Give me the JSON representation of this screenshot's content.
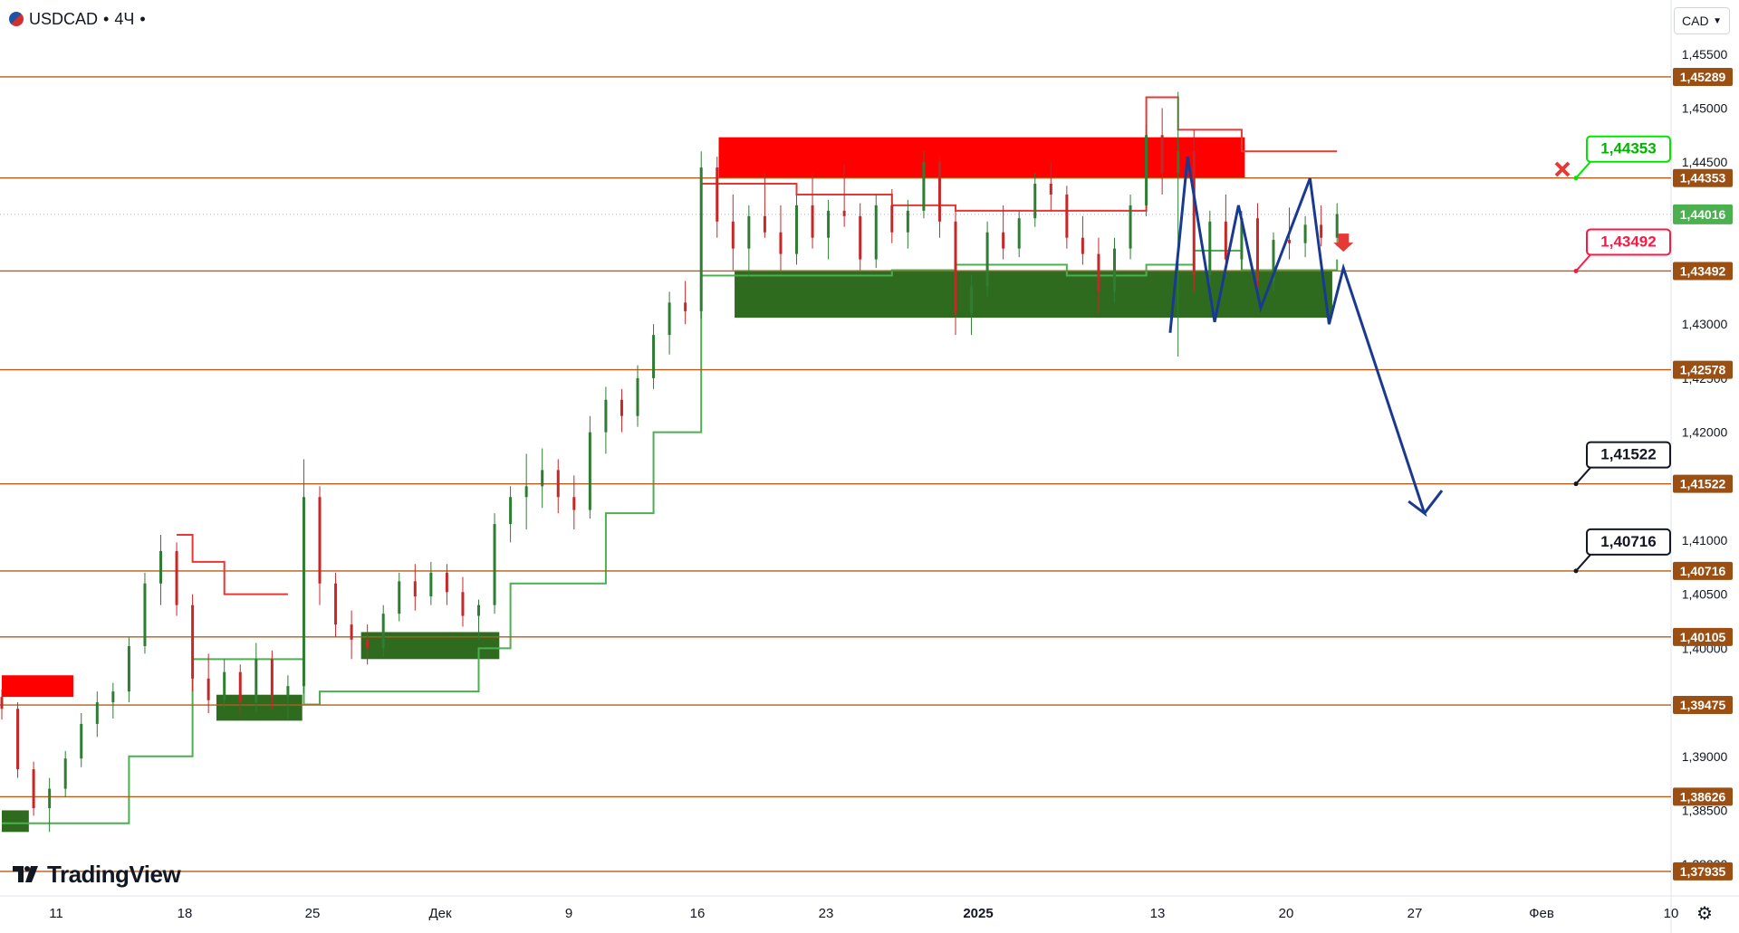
{
  "header": {
    "symbol": "USDCAD",
    "sep1": "•",
    "timeframe": "4Ч",
    "sep2": "•"
  },
  "currency_selector": {
    "value": "CAD"
  },
  "brand": {
    "name": "TradingView"
  },
  "colors": {
    "bull_candle": "#2e7d32",
    "bear_candle": "#c62828",
    "level_line": "#b65c1a",
    "resistance_zone": "#ff0000",
    "support_zone": "#2e6b1f",
    "stop_line": "#e53935",
    "trail_line": "#4caf50",
    "forecast_path": "#1a3a8f",
    "label_green": "#00e600",
    "label_red": "#ff1744"
  },
  "chart_data": {
    "type": "candlestick",
    "symbol": "USDCAD",
    "timeframe": "4Ч",
    "ylim": [
      1.3775,
      1.459
    ],
    "y_ticks": [
      "1,45500",
      "1,45000",
      "1,44500",
      "1,44000",
      "1,43500",
      "1,43000",
      "1,42500",
      "1,42000",
      "1,41500",
      "1,41000",
      "1,40500",
      "1,40000",
      "1,39500",
      "1,39000",
      "1,38500",
      "1,38000"
    ],
    "x_labels": [
      "11",
      "18",
      "25",
      "Дек",
      "9",
      "16",
      "23",
      "2025",
      "13",
      "20",
      "27",
      "Фев",
      "10"
    ],
    "levels": [
      {
        "label": "1,45289",
        "value": 1.45289
      },
      {
        "label": "1,44353",
        "value": 1.44353
      },
      {
        "label": "1,43492",
        "value": 1.43492
      },
      {
        "label": "1,42578",
        "value": 1.42578
      },
      {
        "label": "1,41522",
        "value": 1.41522
      },
      {
        "label": "1,40716",
        "value": 1.40716
      },
      {
        "label": "1,40105",
        "value": 1.40105
      },
      {
        "label": "1,39475",
        "value": 1.39475
      },
      {
        "label": "1,38626",
        "value": 1.38626
      },
      {
        "label": "1,37935",
        "value": 1.37935
      }
    ],
    "current_price": {
      "label": "1,44016",
      "value": 1.44016
    },
    "callouts": [
      {
        "label": "1,44353",
        "value": 1.44353,
        "style": "green"
      },
      {
        "label": "1,43492",
        "value": 1.43492,
        "style": "red"
      },
      {
        "label": "1,41522",
        "value": 1.41522,
        "style": "black"
      },
      {
        "label": "1,40716",
        "value": 1.40716,
        "style": "black"
      }
    ],
    "zones": [
      {
        "kind": "resistance",
        "x0": 0.0,
        "x1": 4.5,
        "y0": 1.3955,
        "y1": 1.3975
      },
      {
        "kind": "support",
        "x0": 0.0,
        "x1": 1.7,
        "y0": 1.383,
        "y1": 1.385
      },
      {
        "kind": "support",
        "x0": 13.5,
        "x1": 18.9,
        "y0": 1.3933,
        "y1": 1.3957
      },
      {
        "kind": "support",
        "x0": 22.6,
        "x1": 31.3,
        "y0": 1.399,
        "y1": 1.4015
      },
      {
        "kind": "resistance",
        "x0": 45.1,
        "x1": 78.2,
        "y0": 1.4435,
        "y1": 1.4473
      },
      {
        "kind": "support",
        "x0": 46.1,
        "x1": 83.7,
        "y0": 1.4306,
        "y1": 1.435
      }
    ],
    "candles": [
      {
        "x": 0,
        "o": 1.3955,
        "h": 1.3962,
        "l": 1.3934,
        "c": 1.3944
      },
      {
        "x": 1,
        "o": 1.3944,
        "h": 1.395,
        "l": 1.388,
        "c": 1.3888
      },
      {
        "x": 2,
        "o": 1.3888,
        "h": 1.3895,
        "l": 1.3845,
        "c": 1.3852
      },
      {
        "x": 3,
        "o": 1.3852,
        "h": 1.388,
        "l": 1.383,
        "c": 1.387
      },
      {
        "x": 4,
        "o": 1.387,
        "h": 1.3905,
        "l": 1.3862,
        "c": 1.3898
      },
      {
        "x": 5,
        "o": 1.3898,
        "h": 1.394,
        "l": 1.389,
        "c": 1.393
      },
      {
        "x": 6,
        "o": 1.393,
        "h": 1.396,
        "l": 1.3918,
        "c": 1.395
      },
      {
        "x": 7,
        "o": 1.395,
        "h": 1.3968,
        "l": 1.3935,
        "c": 1.396
      },
      {
        "x": 8,
        "o": 1.396,
        "h": 1.401,
        "l": 1.395,
        "c": 1.4002
      },
      {
        "x": 9,
        "o": 1.4002,
        "h": 1.407,
        "l": 1.3995,
        "c": 1.406
      },
      {
        "x": 10,
        "o": 1.406,
        "h": 1.4105,
        "l": 1.404,
        "c": 1.409
      },
      {
        "x": 11,
        "o": 1.409,
        "h": 1.4098,
        "l": 1.403,
        "c": 1.404
      },
      {
        "x": 12,
        "o": 1.404,
        "h": 1.405,
        "l": 1.396,
        "c": 1.3972
      },
      {
        "x": 13,
        "o": 1.3972,
        "h": 1.3995,
        "l": 1.394,
        "c": 1.3952
      },
      {
        "x": 14,
        "o": 1.3952,
        "h": 1.399,
        "l": 1.3945,
        "c": 1.3978
      },
      {
        "x": 15,
        "o": 1.3978,
        "h": 1.3985,
        "l": 1.3938,
        "c": 1.395
      },
      {
        "x": 16,
        "o": 1.395,
        "h": 1.4005,
        "l": 1.3942,
        "c": 1.399
      },
      {
        "x": 17,
        "o": 1.399,
        "h": 1.3998,
        "l": 1.3944,
        "c": 1.3955
      },
      {
        "x": 18,
        "o": 1.3955,
        "h": 1.3975,
        "l": 1.3935,
        "c": 1.3965
      },
      {
        "x": 19,
        "o": 1.3965,
        "h": 1.4175,
        "l": 1.3958,
        "c": 1.414
      },
      {
        "x": 20,
        "o": 1.414,
        "h": 1.415,
        "l": 1.404,
        "c": 1.406
      },
      {
        "x": 21,
        "o": 1.406,
        "h": 1.407,
        "l": 1.401,
        "c": 1.4022
      },
      {
        "x": 22,
        "o": 1.4022,
        "h": 1.4035,
        "l": 1.399,
        "c": 1.4008
      },
      {
        "x": 23,
        "o": 1.4008,
        "h": 1.4022,
        "l": 1.3985,
        "c": 1.4
      },
      {
        "x": 24,
        "o": 1.4,
        "h": 1.404,
        "l": 1.3992,
        "c": 1.4032
      },
      {
        "x": 25,
        "o": 1.4032,
        "h": 1.407,
        "l": 1.4025,
        "c": 1.4062
      },
      {
        "x": 26,
        "o": 1.4062,
        "h": 1.4078,
        "l": 1.4035,
        "c": 1.4048
      },
      {
        "x": 27,
        "o": 1.4048,
        "h": 1.408,
        "l": 1.404,
        "c": 1.407
      },
      {
        "x": 28,
        "o": 1.407,
        "h": 1.4078,
        "l": 1.404,
        "c": 1.4052
      },
      {
        "x": 29,
        "o": 1.4052,
        "h": 1.4066,
        "l": 1.402,
        "c": 1.403
      },
      {
        "x": 30,
        "o": 1.403,
        "h": 1.4045,
        "l": 1.4008,
        "c": 1.404
      },
      {
        "x": 31,
        "o": 1.404,
        "h": 1.4125,
        "l": 1.4032,
        "c": 1.4115
      },
      {
        "x": 32,
        "o": 1.4115,
        "h": 1.415,
        "l": 1.4098,
        "c": 1.414
      },
      {
        "x": 33,
        "o": 1.414,
        "h": 1.418,
        "l": 1.411,
        "c": 1.415
      },
      {
        "x": 34,
        "o": 1.415,
        "h": 1.4185,
        "l": 1.413,
        "c": 1.4165
      },
      {
        "x": 35,
        "o": 1.4165,
        "h": 1.4175,
        "l": 1.4125,
        "c": 1.414
      },
      {
        "x": 36,
        "o": 1.414,
        "h": 1.416,
        "l": 1.411,
        "c": 1.4128
      },
      {
        "x": 37,
        "o": 1.4128,
        "h": 1.4215,
        "l": 1.412,
        "c": 1.42
      },
      {
        "x": 38,
        "o": 1.42,
        "h": 1.4242,
        "l": 1.418,
        "c": 1.423
      },
      {
        "x": 39,
        "o": 1.423,
        "h": 1.424,
        "l": 1.42,
        "c": 1.4215
      },
      {
        "x": 40,
        "o": 1.4215,
        "h": 1.4262,
        "l": 1.4205,
        "c": 1.425
      },
      {
        "x": 41,
        "o": 1.425,
        "h": 1.43,
        "l": 1.424,
        "c": 1.429
      },
      {
        "x": 42,
        "o": 1.429,
        "h": 1.433,
        "l": 1.4272,
        "c": 1.432
      },
      {
        "x": 43,
        "o": 1.432,
        "h": 1.434,
        "l": 1.43,
        "c": 1.4312
      },
      {
        "x": 44,
        "o": 1.4312,
        "h": 1.446,
        "l": 1.4305,
        "c": 1.4445
      },
      {
        "x": 45,
        "o": 1.4445,
        "h": 1.4455,
        "l": 1.438,
        "c": 1.4395
      },
      {
        "x": 46,
        "o": 1.4395,
        "h": 1.442,
        "l": 1.435,
        "c": 1.437
      },
      {
        "x": 47,
        "o": 1.437,
        "h": 1.441,
        "l": 1.4345,
        "c": 1.44
      },
      {
        "x": 48,
        "o": 1.44,
        "h": 1.444,
        "l": 1.438,
        "c": 1.4385
      },
      {
        "x": 49,
        "o": 1.4385,
        "h": 1.441,
        "l": 1.435,
        "c": 1.4365
      },
      {
        "x": 50,
        "o": 1.4365,
        "h": 1.442,
        "l": 1.4355,
        "c": 1.441
      },
      {
        "x": 51,
        "o": 1.441,
        "h": 1.444,
        "l": 1.437,
        "c": 1.438
      },
      {
        "x": 52,
        "o": 1.438,
        "h": 1.4415,
        "l": 1.436,
        "c": 1.4405
      },
      {
        "x": 53,
        "o": 1.4405,
        "h": 1.4448,
        "l": 1.439,
        "c": 1.44
      },
      {
        "x": 54,
        "o": 1.44,
        "h": 1.4412,
        "l": 1.435,
        "c": 1.436
      },
      {
        "x": 55,
        "o": 1.436,
        "h": 1.442,
        "l": 1.4352,
        "c": 1.441
      },
      {
        "x": 56,
        "o": 1.441,
        "h": 1.4425,
        "l": 1.4375,
        "c": 1.4385
      },
      {
        "x": 57,
        "o": 1.4385,
        "h": 1.4415,
        "l": 1.437,
        "c": 1.4405
      },
      {
        "x": 58,
        "o": 1.4405,
        "h": 1.446,
        "l": 1.4398,
        "c": 1.445
      },
      {
        "x": 59,
        "o": 1.445,
        "h": 1.4455,
        "l": 1.438,
        "c": 1.4395
      },
      {
        "x": 60,
        "o": 1.4395,
        "h": 1.4405,
        "l": 1.429,
        "c": 1.431
      },
      {
        "x": 61,
        "o": 1.431,
        "h": 1.4345,
        "l": 1.429,
        "c": 1.4335
      },
      {
        "x": 62,
        "o": 1.4335,
        "h": 1.4395,
        "l": 1.4325,
        "c": 1.4385
      },
      {
        "x": 63,
        "o": 1.4385,
        "h": 1.441,
        "l": 1.436,
        "c": 1.437
      },
      {
        "x": 64,
        "o": 1.437,
        "h": 1.4405,
        "l": 1.4362,
        "c": 1.4398
      },
      {
        "x": 65,
        "o": 1.4398,
        "h": 1.444,
        "l": 1.439,
        "c": 1.443
      },
      {
        "x": 66,
        "o": 1.443,
        "h": 1.445,
        "l": 1.4405,
        "c": 1.442
      },
      {
        "x": 67,
        "o": 1.442,
        "h": 1.4428,
        "l": 1.437,
        "c": 1.438
      },
      {
        "x": 68,
        "o": 1.438,
        "h": 1.44,
        "l": 1.4355,
        "c": 1.4365
      },
      {
        "x": 69,
        "o": 1.4365,
        "h": 1.438,
        "l": 1.431,
        "c": 1.433
      },
      {
        "x": 70,
        "o": 1.433,
        "h": 1.438,
        "l": 1.432,
        "c": 1.437
      },
      {
        "x": 71,
        "o": 1.437,
        "h": 1.442,
        "l": 1.436,
        "c": 1.441
      },
      {
        "x": 72,
        "o": 1.441,
        "h": 1.4485,
        "l": 1.44,
        "c": 1.4475
      },
      {
        "x": 73,
        "o": 1.4475,
        "h": 1.45,
        "l": 1.442,
        "c": 1.444
      },
      {
        "x": 74,
        "o": 1.444,
        "h": 1.4515,
        "l": 1.427,
        "c": 1.446
      },
      {
        "x": 75,
        "o": 1.446,
        "h": 1.448,
        "l": 1.433,
        "c": 1.4345
      },
      {
        "x": 76,
        "o": 1.4345,
        "h": 1.4405,
        "l": 1.433,
        "c": 1.4395
      },
      {
        "x": 77,
        "o": 1.4395,
        "h": 1.442,
        "l": 1.4345,
        "c": 1.436
      },
      {
        "x": 78,
        "o": 1.436,
        "h": 1.4405,
        "l": 1.435,
        "c": 1.4398
      },
      {
        "x": 79,
        "o": 1.4398,
        "h": 1.4412,
        "l": 1.433,
        "c": 1.434
      },
      {
        "x": 80,
        "o": 1.434,
        "h": 1.4385,
        "l": 1.433,
        "c": 1.4378
      },
      {
        "x": 81,
        "o": 1.4378,
        "h": 1.4408,
        "l": 1.436,
        "c": 1.4375
      },
      {
        "x": 82,
        "o": 1.4375,
        "h": 1.44,
        "l": 1.4362,
        "c": 1.4392
      },
      {
        "x": 83,
        "o": 1.4392,
        "h": 1.441,
        "l": 1.4372,
        "c": 1.438
      },
      {
        "x": 84,
        "o": 1.438,
        "h": 1.4412,
        "l": 1.4372,
        "c": 1.4402
      }
    ],
    "trail_support": [
      [
        0,
        1.3838
      ],
      [
        8,
        1.39
      ],
      [
        12,
        1.399
      ],
      [
        19,
        1.3948
      ],
      [
        20,
        1.396
      ],
      [
        30,
        1.4
      ],
      [
        32,
        1.406
      ],
      [
        38,
        1.4125
      ],
      [
        41,
        1.42
      ],
      [
        44,
        1.4345
      ],
      [
        56,
        1.435
      ],
      [
        60,
        1.4355
      ],
      [
        67,
        1.4345
      ],
      [
        72,
        1.4355
      ],
      [
        75,
        1.4368
      ],
      [
        78,
        1.435
      ],
      [
        84,
        1.436
      ]
    ],
    "trail_resistance": [
      [
        11,
        1.4105
      ],
      [
        12,
        1.408
      ],
      [
        14,
        1.405
      ],
      [
        18,
        1.405
      ],
      [
        44,
        1.443
      ],
      [
        50,
        1.442
      ],
      [
        56,
        1.441
      ],
      [
        60,
        1.4405
      ],
      [
        66,
        1.4405
      ],
      [
        72,
        1.451
      ],
      [
        74,
        1.448
      ],
      [
        78,
        1.446
      ],
      [
        84,
        1.446
      ]
    ],
    "forecast_path": [
      [
        73.5,
        1.4292
      ],
      [
        74.6,
        1.4455
      ],
      [
        76.3,
        1.4302
      ],
      [
        77.8,
        1.441
      ],
      [
        79.2,
        1.4315
      ],
      [
        82.3,
        1.4435
      ],
      [
        83.5,
        1.43
      ],
      [
        84.4,
        1.4352
      ],
      [
        89.5,
        1.4125
      ],
      [
        88.5,
        1.4136
      ],
      [
        89.5,
        1.4125
      ],
      [
        90.6,
        1.4146
      ]
    ]
  }
}
